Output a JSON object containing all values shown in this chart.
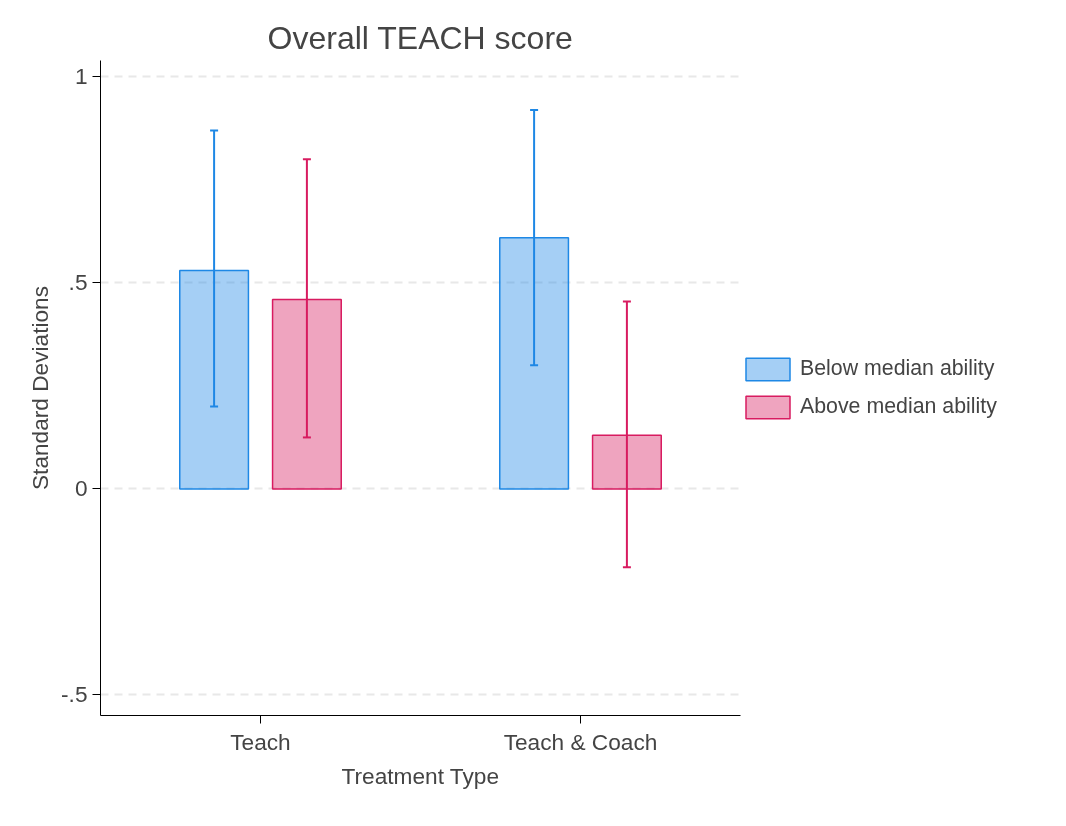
{
  "chart_data": {
    "type": "bar",
    "title": "Overall TEACH score",
    "xlabel": "Treatment Type",
    "ylabel": "Standard Deviations",
    "categories": [
      "Teach",
      "Teach & Coach"
    ],
    "series": [
      {
        "name": "Below median ability",
        "color": "#1e88e5",
        "values": [
          0.53,
          0.61
        ],
        "errors": [
          [
            0.2,
            0.87
          ],
          [
            0.3,
            0.92
          ]
        ]
      },
      {
        "name": "Above median ability",
        "color": "#d81b60",
        "values": [
          0.46,
          0.13
        ],
        "errors": [
          [
            0.125,
            0.8
          ],
          [
            -0.19,
            0.455
          ]
        ]
      }
    ],
    "ylim": [
      -0.55,
      1.04
    ],
    "yticks": [
      {
        "value": -0.5,
        "label": "-.5"
      },
      {
        "value": 0,
        "label": "0"
      },
      {
        "value": 0.5,
        "label": ".5"
      },
      {
        "value": 1,
        "label": "1"
      }
    ],
    "grid": "y",
    "legend": "right"
  }
}
